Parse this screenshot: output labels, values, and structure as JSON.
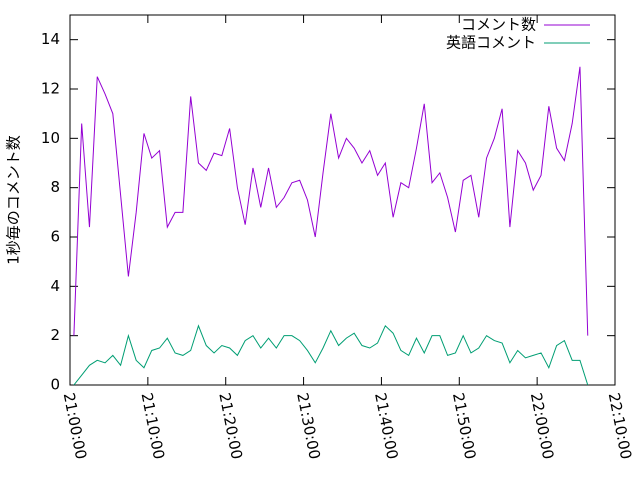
{
  "chart_data": {
    "type": "line",
    "ylabel": "1秒毎のコメント数",
    "x": [
      "21:00:30",
      "21:01:30",
      "21:02:30",
      "21:03:30",
      "21:04:30",
      "21:05:30",
      "21:06:30",
      "21:07:30",
      "21:08:30",
      "21:09:30",
      "21:10:30",
      "21:11:30",
      "21:12:30",
      "21:13:30",
      "21:14:30",
      "21:15:30",
      "21:16:30",
      "21:17:30",
      "21:18:30",
      "21:19:30",
      "21:20:30",
      "21:21:30",
      "21:22:30",
      "21:23:30",
      "21:24:30",
      "21:25:30",
      "21:26:30",
      "21:27:30",
      "21:28:30",
      "21:29:30",
      "21:30:30",
      "21:31:30",
      "21:32:30",
      "21:33:30",
      "21:34:30",
      "21:35:30",
      "21:36:30",
      "21:37:30",
      "21:38:30",
      "21:39:30",
      "21:40:30",
      "21:41:30",
      "21:42:30",
      "21:43:30",
      "21:44:30",
      "21:45:30",
      "21:46:30",
      "21:47:30",
      "21:48:30",
      "21:49:30",
      "21:50:30",
      "21:51:30",
      "21:52:30",
      "21:53:30",
      "21:54:30",
      "21:55:30",
      "21:56:30",
      "21:57:30",
      "21:58:30",
      "21:59:30",
      "22:00:30",
      "22:01:30",
      "22:02:30",
      "22:03:30",
      "22:04:30",
      "22:05:30",
      "22:06:30"
    ],
    "series": [
      {
        "name": "コメント数",
        "color": "#9400d3",
        "values": [
          2,
          10.6,
          6.4,
          12.5,
          11.8,
          11,
          7.7,
          4.4,
          7,
          10.2,
          9.2,
          9.5,
          6.4,
          7,
          7,
          11.7,
          9,
          8.7,
          9.4,
          9.3,
          10.4,
          8,
          6.5,
          8.8,
          7.2,
          8.8,
          7.2,
          7.6,
          8.2,
          8.3,
          7.5,
          6,
          8.6,
          11,
          9.2,
          10,
          9.6,
          9,
          9.5,
          8.5,
          9,
          6.8,
          8.2,
          8,
          9.6,
          11.4,
          8.2,
          8.6,
          7.6,
          6.2,
          8.3,
          8.5,
          6.8,
          9.2,
          10,
          11.2,
          6.4,
          9.5,
          9,
          7.9,
          8.5,
          11.3,
          9.6,
          9.1,
          10.6,
          12.9,
          2
        ]
      },
      {
        "name": "英語コメント",
        "color": "#009e73",
        "values": [
          0,
          0.4,
          0.8,
          1.0,
          0.9,
          1.2,
          0.8,
          2.0,
          1.0,
          0.7,
          1.4,
          1.5,
          1.9,
          1.3,
          1.2,
          1.4,
          2.4,
          1.6,
          1.3,
          1.6,
          1.5,
          1.2,
          1.8,
          2.0,
          1.5,
          1.9,
          1.5,
          2.0,
          2.0,
          1.8,
          1.4,
          0.9,
          1.5,
          2.2,
          1.6,
          1.9,
          2.1,
          1.6,
          1.5,
          1.7,
          2.4,
          2.1,
          1.4,
          1.2,
          1.9,
          1.3,
          2.0,
          2.0,
          1.2,
          1.3,
          2.0,
          1.3,
          1.5,
          2.0,
          1.8,
          1.7,
          0.9,
          1.4,
          1.1,
          1.2,
          1.3,
          0.7,
          1.6,
          1.8,
          1.0,
          1.0,
          0
        ]
      }
    ],
    "xlim": [
      "21:00:00",
      "22:10:00"
    ],
    "xticks": [
      "21:00:00",
      "21:10:00",
      "21:20:00",
      "21:30:00",
      "21:40:00",
      "21:50:00",
      "22:00:00",
      "22:10:00"
    ],
    "ylim": [
      0,
      15
    ],
    "yticks": [
      0,
      2,
      4,
      6,
      8,
      10,
      12,
      14
    ],
    "legend": "top-right"
  }
}
